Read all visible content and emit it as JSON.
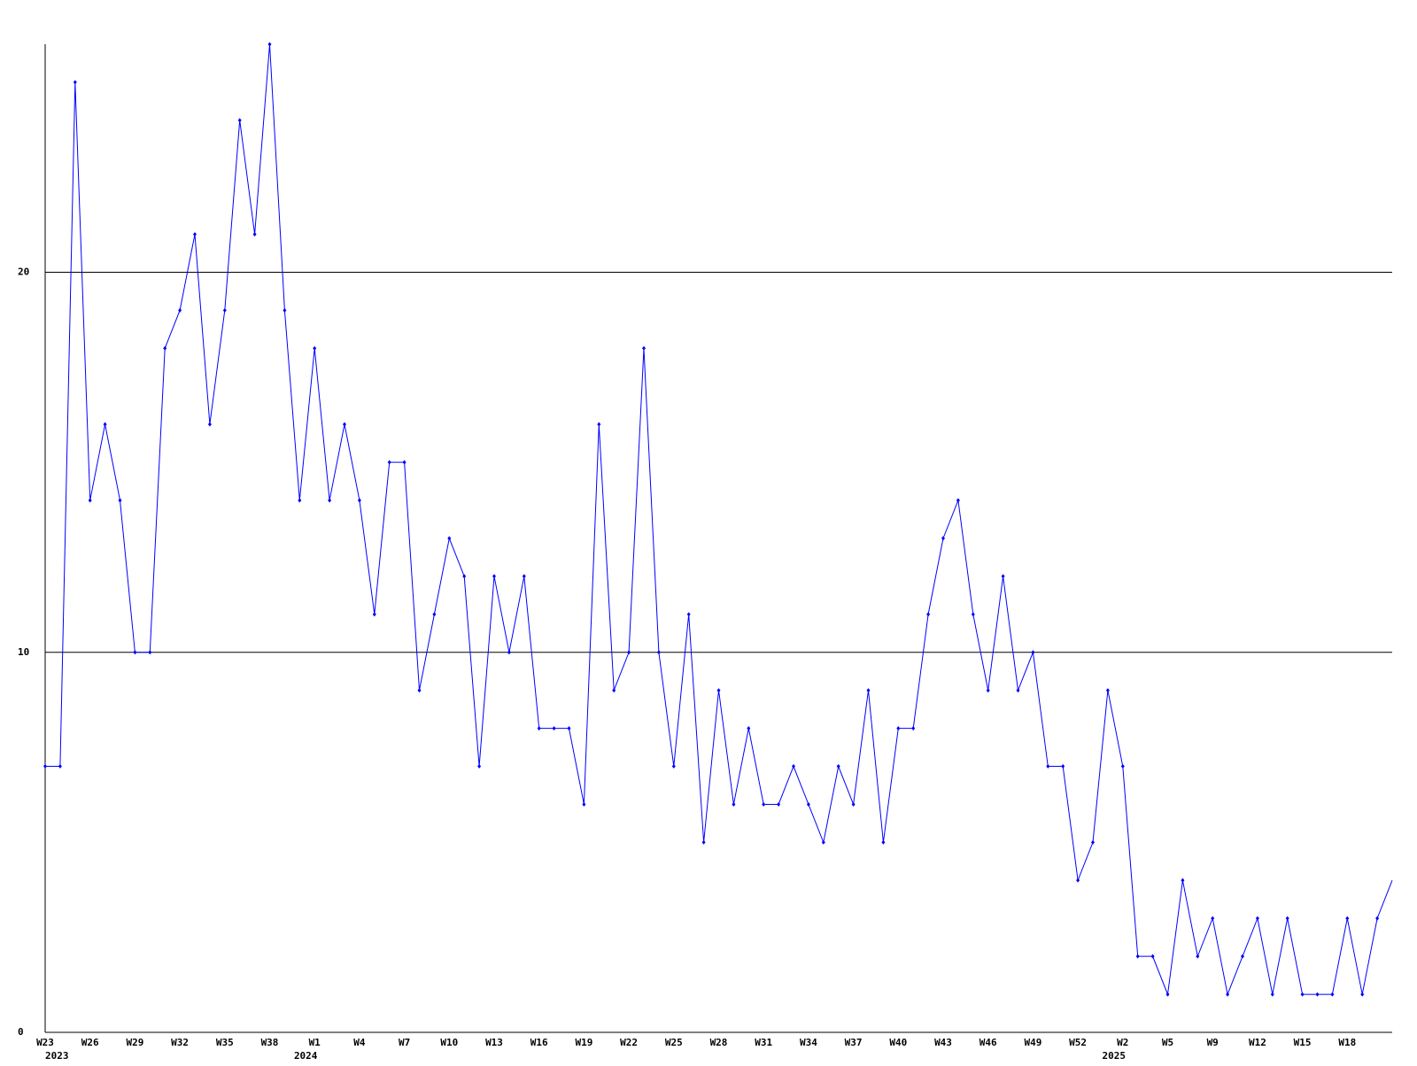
{
  "chart_data": {
    "type": "line",
    "categories": [
      "W23",
      null,
      null,
      "W26",
      null,
      null,
      "W29",
      null,
      null,
      "W32",
      null,
      null,
      "W35",
      null,
      null,
      "W38",
      null,
      null,
      "W1",
      null,
      null,
      "W4",
      null,
      null,
      "W7",
      null,
      null,
      "W10",
      null,
      null,
      "W13",
      null,
      null,
      "W16",
      null,
      null,
      "W19",
      null,
      null,
      "W22",
      null,
      null,
      "W25",
      null,
      null,
      "W28",
      null,
      null,
      "W31",
      null,
      null,
      "W34",
      null,
      null,
      "W37",
      null,
      null,
      "W40",
      null,
      null,
      "W43",
      null,
      null,
      "W46",
      null,
      null,
      "W49",
      null,
      null,
      "W52",
      null,
      null,
      "W2",
      null,
      null,
      "W5",
      null,
      null,
      "W9",
      null,
      null,
      "W12",
      null,
      null,
      "W15",
      null,
      null,
      "W18",
      null,
      null,
      null
    ],
    "year_labels": [
      "2023",
      null,
      null,
      null,
      null,
      null,
      null,
      null,
      null,
      null,
      null,
      null,
      null,
      null,
      null,
      null,
      null,
      null,
      "2024",
      null,
      null,
      null,
      null,
      null,
      null,
      null,
      null,
      null,
      null,
      null,
      null,
      null,
      null,
      null,
      null,
      null,
      null,
      null,
      null,
      null,
      null,
      null,
      null,
      null,
      null,
      null,
      null,
      null,
      null,
      null,
      null,
      null,
      null,
      null,
      null,
      null,
      null,
      null,
      null,
      null,
      null,
      null,
      null,
      null,
      null,
      null,
      null,
      null,
      null,
      null,
      null,
      null,
      "2025",
      null,
      null,
      null,
      null,
      null,
      null,
      null,
      null,
      null,
      null,
      null,
      null,
      null,
      null,
      null,
      null,
      null
    ],
    "series": [
      {
        "color": "#0000ff",
        "values": [
          7,
          7,
          25,
          14,
          16,
          14,
          10,
          10,
          18,
          19,
          21,
          16,
          19,
          24,
          21,
          26,
          19,
          14,
          18,
          14,
          16,
          14,
          11,
          15,
          15,
          9,
          11,
          13,
          12,
          7,
          12,
          10,
          12,
          8,
          8,
          8,
          6,
          16,
          9,
          10,
          18,
          10,
          7,
          11,
          5,
          9,
          6,
          8,
          6,
          6,
          7,
          6,
          5,
          7,
          6,
          9,
          5,
          8,
          8,
          11,
          13,
          14,
          11,
          9,
          12,
          9,
          10,
          7,
          7,
          4,
          5,
          9,
          7,
          2,
          2,
          1,
          4,
          2,
          3,
          1,
          2,
          3,
          1,
          3,
          1,
          1,
          1,
          3,
          1,
          3,
          4
        ]
      }
    ],
    "ylim": [
      0,
      26
    ],
    "yticks": [
      0,
      10,
      20
    ],
    "grid": true
  }
}
